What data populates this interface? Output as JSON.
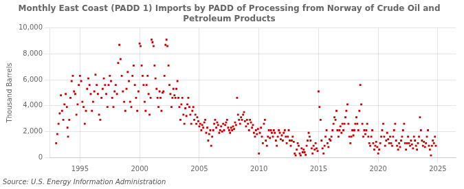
{
  "chart_data": {
    "type": "scatter",
    "title": "Monthly East Coast (PADD 1) Imports by PADD of Processing from Norway of Crude Oil and\nPetroleum Products",
    "ylabel": "Thousand Barrels",
    "annotation": "Source: U.S. Energy Information Administration",
    "color": "#cc0000",
    "marker": "square",
    "grid": true,
    "xlim": [
      1992.5,
      2026.5
    ],
    "ylim": [
      0,
      10000
    ],
    "xticks": [
      1995,
      2000,
      2005,
      2010,
      2015,
      2020,
      2025
    ],
    "yticks": [
      0,
      {
        "value": 2000,
        "label": "2,000"
      },
      {
        "value": 4000,
        "label": "4,000"
      },
      {
        "value": 6000,
        "label": "6,000"
      },
      {
        "value": 8000,
        "label": "8,000"
      },
      {
        "value": 10000,
        "label": "10,000"
      }
    ],
    "x": [
      1993.0,
      1993.1,
      1993.2,
      1993.3,
      1993.4,
      1993.5,
      1993.6,
      1993.7,
      1993.8,
      1993.9,
      1993.95,
      1994.0,
      1994.1,
      1994.2,
      1994.3,
      1994.4,
      1994.5,
      1994.6,
      1994.7,
      1994.8,
      1994.9,
      1995.0,
      1995.1,
      1995.2,
      1995.3,
      1995.4,
      1995.5,
      1995.6,
      1995.7,
      1995.8,
      1995.9,
      1996.0,
      1996.1,
      1996.2,
      1996.3,
      1996.4,
      1996.5,
      1996.6,
      1996.7,
      1996.8,
      1996.9,
      1997.0,
      1997.1,
      1997.2,
      1997.3,
      1997.4,
      1997.5,
      1997.6,
      1997.7,
      1997.8,
      1997.9,
      1998.0,
      1998.1,
      1998.2,
      1998.3,
      1998.4,
      1998.5,
      1998.6,
      1998.7,
      1998.8,
      1998.9,
      1999.0,
      1999.1,
      1999.2,
      1999.3,
      1999.4,
      1999.5,
      1999.6,
      1999.7,
      1999.8,
      1999.9,
      2000.0,
      2000.08,
      2000.17,
      2000.25,
      2000.33,
      2000.42,
      2000.5,
      2000.58,
      2000.67,
      2000.75,
      2000.83,
      2000.92,
      2001.0,
      2001.08,
      2001.17,
      2001.25,
      2001.33,
      2001.42,
      2001.5,
      2001.58,
      2001.67,
      2001.75,
      2001.83,
      2001.92,
      2002.0,
      2002.08,
      2002.17,
      2002.25,
      2002.33,
      2002.42,
      2002.5,
      2002.58,
      2002.67,
      2002.75,
      2002.83,
      2002.92,
      2003.0,
      2003.08,
      2003.17,
      2003.25,
      2003.33,
      2003.42,
      2003.5,
      2003.58,
      2003.67,
      2003.75,
      2003.83,
      2003.92,
      2004.0,
      2004.08,
      2004.17,
      2004.25,
      2004.33,
      2004.42,
      2004.5,
      2004.58,
      2004.67,
      2004.75,
      2004.83,
      2004.92,
      2005.0,
      2005.08,
      2005.17,
      2005.25,
      2005.33,
      2005.42,
      2005.5,
      2005.58,
      2005.67,
      2005.75,
      2005.83,
      2005.92,
      2006.0,
      2006.08,
      2006.17,
      2006.25,
      2006.33,
      2006.42,
      2006.5,
      2006.58,
      2006.67,
      2006.75,
      2006.83,
      2006.92,
      2007.0,
      2007.08,
      2007.17,
      2007.25,
      2007.33,
      2007.42,
      2007.5,
      2007.58,
      2007.67,
      2007.75,
      2007.83,
      2007.92,
      2008.0,
      2008.08,
      2008.17,
      2008.25,
      2008.33,
      2008.42,
      2008.5,
      2008.58,
      2008.67,
      2008.75,
      2008.83,
      2008.92,
      2009.0,
      2009.08,
      2009.17,
      2009.25,
      2009.33,
      2009.42,
      2009.5,
      2009.58,
      2009.67,
      2009.75,
      2009.83,
      2009.92,
      2010.0,
      2010.08,
      2010.17,
      2010.25,
      2010.33,
      2010.42,
      2010.5,
      2010.58,
      2010.67,
      2010.75,
      2010.83,
      2010.92,
      2011.0,
      2011.08,
      2011.17,
      2011.25,
      2011.33,
      2011.42,
      2011.5,
      2011.58,
      2011.67,
      2011.75,
      2011.83,
      2011.92,
      2012.0,
      2012.08,
      2012.17,
      2012.25,
      2012.33,
      2012.42,
      2012.5,
      2012.58,
      2012.67,
      2012.75,
      2012.83,
      2012.92,
      2013.0,
      2013.08,
      2013.17,
      2013.25,
      2013.33,
      2013.42,
      2013.5,
      2013.58,
      2013.67,
      2013.75,
      2013.83,
      2013.92,
      2014.0,
      2014.08,
      2014.17,
      2014.25,
      2014.33,
      2014.42,
      2014.5,
      2014.58,
      2014.67,
      2014.75,
      2014.83,
      2014.92,
      2015.0,
      2015.08,
      2015.17,
      2015.25,
      2015.33,
      2015.42,
      2015.5,
      2015.58,
      2015.67,
      2015.75,
      2015.83,
      2015.92,
      2016.0,
      2016.08,
      2016.17,
      2016.25,
      2016.33,
      2016.42,
      2016.5,
      2016.58,
      2016.67,
      2016.75,
      2016.83,
      2016.92,
      2017.0,
      2017.08,
      2017.17,
      2017.25,
      2017.33,
      2017.42,
      2017.5,
      2017.58,
      2017.67,
      2017.75,
      2017.83,
      2017.92,
      2018.0,
      2018.08,
      2018.17,
      2018.25,
      2018.33,
      2018.42,
      2018.5,
      2018.58,
      2018.67,
      2018.75,
      2018.83,
      2018.92,
      2019.0,
      2019.08,
      2019.17,
      2019.25,
      2019.33,
      2019.42,
      2019.5,
      2019.58,
      2019.67,
      2019.75,
      2019.83,
      2019.92,
      2020.0,
      2020.08,
      2020.17,
      2020.25,
      2020.33,
      2020.42,
      2020.5,
      2020.58,
      2020.67,
      2020.75,
      2020.83,
      2020.92,
      2021.0,
      2021.08,
      2021.17,
      2021.25,
      2021.33,
      2021.42,
      2021.5,
      2021.58,
      2021.67,
      2021.75,
      2021.83,
      2021.92,
      2022.0,
      2022.08,
      2022.17,
      2022.25,
      2022.33,
      2022.42,
      2022.5,
      2022.58,
      2022.67,
      2022.75,
      2022.83,
      2022.92,
      2023.0,
      2023.08,
      2023.17,
      2023.25,
      2023.33,
      2023.42,
      2023.5,
      2023.58,
      2023.67,
      2023.75,
      2023.83,
      2023.92,
      2024.0,
      2024.08,
      2024.17,
      2024.25,
      2024.33,
      2024.42,
      2024.5,
      2024.58,
      2024.67,
      2024.75,
      2024.83
    ],
    "values": [
      1100,
      1800,
      2600,
      3400,
      4800,
      3600,
      2900,
      4100,
      4900,
      3900,
      2300,
      1600,
      2900,
      4600,
      5900,
      6300,
      5100,
      4900,
      3300,
      4100,
      5600,
      6300,
      5900,
      4300,
      3900,
      2600,
      3600,
      5300,
      6100,
      5600,
      4900,
      3600,
      4300,
      5100,
      6400,
      5600,
      4900,
      3300,
      2900,
      4600,
      5300,
      6100,
      5600,
      4900,
      3900,
      5600,
      6300,
      5900,
      4600,
      3900,
      5100,
      5600,
      4900,
      7300,
      8700,
      7600,
      6300,
      5100,
      4300,
      3600,
      5300,
      6600,
      5900,
      4300,
      3900,
      6300,
      7100,
      5600,
      4600,
      3600,
      5100,
      8800,
      8600,
      7100,
      6300,
      5600,
      4300,
      3600,
      5600,
      6300,
      4900,
      3300,
      4600,
      9100,
      8900,
      8600,
      7100,
      6100,
      5300,
      4600,
      3900,
      5100,
      4600,
      3600,
      5000,
      5100,
      6300,
      8700,
      9100,
      8600,
      7100,
      5600,
      4900,
      3900,
      4600,
      5300,
      4800,
      4600,
      5300,
      5900,
      4600,
      3900,
      2900,
      4100,
      4600,
      3300,
      2600,
      3800,
      3200,
      4100,
      4600,
      3900,
      3300,
      2600,
      3600,
      3900,
      2900,
      3300,
      2600,
      3100,
      2800,
      2400,
      2600,
      2100,
      2500,
      2300,
      2700,
      2900,
      1900,
      2300,
      1300,
      1800,
      2100,
      900,
      1600,
      2100,
      2600,
      2900,
      2300,
      2700,
      2500,
      1900,
      2100,
      2400,
      2000,
      2600,
      2100,
      2500,
      2700,
      2900,
      2300,
      2100,
      1900,
      2300,
      2100,
      2400,
      2200,
      2700,
      2500,
      4600,
      3300,
      2900,
      2600,
      3100,
      2900,
      3300,
      3500,
      2800,
      2400,
      2900,
      2600,
      2100,
      2900,
      2700,
      2300,
      2500,
      1900,
      1600,
      2100,
      1800,
      2200,
      300,
      1900,
      2300,
      1600,
      1100,
      2600,
      2900,
      1300,
      900,
      1600,
      2100,
      1500,
      2100,
      1900,
      1600,
      2100,
      1900,
      1300,
      900,
      1600,
      2100,
      1900,
      1400,
      1700,
      1300,
      1900,
      2100,
      1600,
      1100,
      1600,
      2100,
      1300,
      900,
      1300,
      1600,
      1200,
      300,
      150,
      600,
      1100,
      900,
      300,
      150,
      700,
      400,
      600,
      400,
      200,
      900,
      1300,
      1900,
      1600,
      1300,
      700,
      300,
      900,
      600,
      1100,
      700,
      500,
      5100,
      3900,
      2900,
      1300,
      700,
      300,
      900,
      1600,
      2100,
      1100,
      800,
      1400,
      1300,
      1600,
      2100,
      2600,
      3100,
      2900,
      3600,
      2100,
      1600,
      2100,
      2400,
      1900,
      2600,
      2100,
      2600,
      3100,
      3600,
      4100,
      2600,
      1600,
      1100,
      1600,
      2100,
      1700,
      2100,
      2600,
      3100,
      2600,
      2100,
      3600,
      5600,
      4100,
      2600,
      1600,
      2100,
      1800,
      2100,
      2600,
      1600,
      1100,
      900,
      1600,
      2100,
      1100,
      600,
      900,
      1200,
      800,
      300,
      600,
      1100,
      1600,
      2100,
      2600,
      1600,
      900,
      1300,
      1900,
      1400,
      1100,
      1600,
      1100,
      900,
      1600,
      2100,
      2600,
      1300,
      900,
      600,
      1100,
      800,
      1300,
      1600,
      2100,
      2600,
      1100,
      600,
      1100,
      1600,
      1100,
      900,
      1300,
      1000,
      700,
      1600,
      1300,
      900,
      600,
      1100,
      1600,
      3100,
      2100,
      1300,
      900,
      1200,
      800,
      1100,
      1600,
      2100,
      900,
      600,
      150,
      900,
      1300,
      1100,
      1600,
      900
    ]
  }
}
